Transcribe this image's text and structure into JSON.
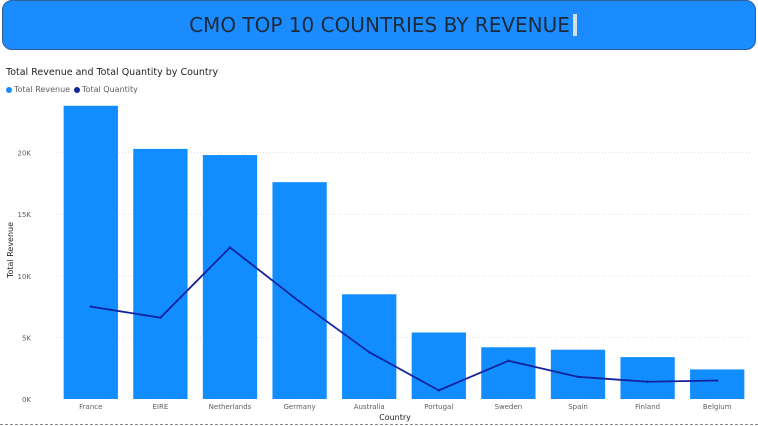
{
  "header": {
    "title": "CMO TOP 10 COUNTRIES BY REVENUE"
  },
  "colors": {
    "banner": "#1a8cff",
    "revenue": "#118dff",
    "quantity": "#12239e",
    "grid": "#e1dfdd"
  },
  "chart_data": {
    "type": "bar",
    "title": "Total Revenue and Total Quantity by Country",
    "xlabel": "Country",
    "ylabel": "Total Revenue",
    "ylim": [
      0,
      25000
    ],
    "yticks": [
      0,
      5000,
      10000,
      15000,
      20000
    ],
    "ytick_labels": [
      "0K",
      "5K",
      "10K",
      "15K",
      "20K"
    ],
    "grid": true,
    "legend": "top-left",
    "categories": [
      "France",
      "EIRE",
      "Netherlands",
      "Germany",
      "Australia",
      "Portugal",
      "Sweden",
      "Spain",
      "Finland",
      "Belgium"
    ],
    "series": [
      {
        "name": "Total Revenue",
        "kind": "bar",
        "color": "#118dff",
        "values": [
          23800,
          20300,
          19800,
          17600,
          8500,
          5400,
          4200,
          4000,
          3400,
          2400
        ]
      },
      {
        "name": "Total Quantity",
        "kind": "line",
        "color": "#12239e",
        "values": [
          7500,
          6600,
          12300,
          7900,
          3800,
          700,
          3100,
          1800,
          1400,
          1500
        ]
      }
    ]
  }
}
